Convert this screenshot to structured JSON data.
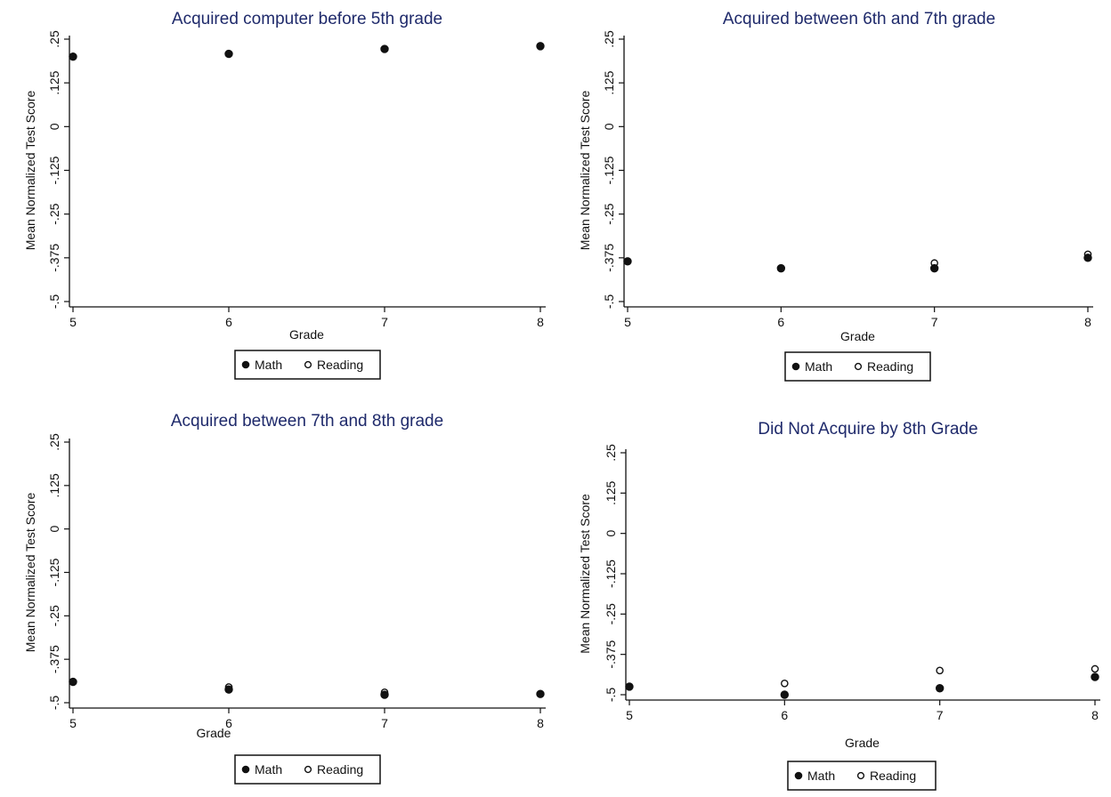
{
  "colors": {
    "title": "#1f2a6b",
    "ink": "#111111",
    "background": "#ffffff"
  },
  "chart_data": [
    {
      "type": "scatter",
      "title": "Acquired computer before 5th grade",
      "xlabel": "Grade",
      "ylabel": "Mean Normalized Test Score",
      "x": [
        5,
        6,
        7,
        8
      ],
      "xticks": [
        "5",
        "6",
        "7",
        "8"
      ],
      "yticks": [
        "-.5",
        "-.375",
        "-.25",
        "-.125",
        "0",
        ".125",
        ".25"
      ],
      "ytick_values": [
        -0.5,
        -0.375,
        -0.25,
        -0.125,
        0,
        0.125,
        0.25
      ],
      "xlim": [
        5,
        8
      ],
      "ylim": [
        -0.5,
        0.25
      ],
      "grid": false,
      "legend_position": "bottom",
      "series": [
        {
          "name": "Math",
          "marker": "filled-circle",
          "values": [
            0.2,
            0.208,
            0.222,
            0.23
          ]
        },
        {
          "name": "Reading",
          "marker": "hollow-circle",
          "values": [
            0.2,
            0.208,
            0.222,
            0.23
          ]
        }
      ]
    },
    {
      "type": "scatter",
      "title": "Acquired between 6th and 7th grade",
      "xlabel": "Grade",
      "ylabel": "Mean Normalized Test Score",
      "x": [
        5,
        6,
        7,
        8
      ],
      "xticks": [
        "5",
        "6",
        "7",
        "8"
      ],
      "yticks": [
        "-.5",
        "-.375",
        "-.25",
        "-.125",
        "0",
        ".125",
        ".25"
      ],
      "ytick_values": [
        -0.5,
        -0.375,
        -0.25,
        -0.125,
        0,
        0.125,
        0.25
      ],
      "xlim": [
        5,
        8
      ],
      "ylim": [
        -0.5,
        0.25
      ],
      "grid": false,
      "legend_position": "bottom",
      "series": [
        {
          "name": "Math",
          "marker": "filled-circle",
          "values": [
            -0.385,
            -0.405,
            -0.405,
            -0.375
          ]
        },
        {
          "name": "Reading",
          "marker": "hollow-circle",
          "values": [
            -0.385,
            -0.405,
            -0.39,
            -0.365
          ]
        }
      ]
    },
    {
      "type": "scatter",
      "title": "Acquired between 7th and 8th grade",
      "xlabel": "Grade",
      "ylabel": "Mean Normalized Test Score",
      "x": [
        5,
        6,
        7,
        8
      ],
      "xticks": [
        "5",
        "6",
        "7",
        "8"
      ],
      "yticks": [
        "-.5",
        "-.375",
        "-.25",
        "-.125",
        "0",
        ".125",
        ".25"
      ],
      "ytick_values": [
        -0.5,
        -0.375,
        -0.25,
        -0.125,
        0,
        0.125,
        0.25
      ],
      "xlim": [
        5,
        8
      ],
      "ylim": [
        -0.5,
        0.25
      ],
      "grid": false,
      "legend_position": "bottom",
      "series": [
        {
          "name": "Math",
          "marker": "filled-circle",
          "values": [
            -0.44,
            -0.462,
            -0.477,
            -0.475
          ]
        },
        {
          "name": "Reading",
          "marker": "hollow-circle",
          "values": [
            -0.44,
            -0.455,
            -0.47,
            -0.475
          ]
        }
      ]
    },
    {
      "type": "scatter",
      "title": "Did Not Acquire by 8th Grade",
      "xlabel": "Grade",
      "ylabel": "Mean Normalized Test Score",
      "x": [
        5,
        6,
        7,
        8
      ],
      "xticks": [
        "5",
        "6",
        "7",
        "8"
      ],
      "yticks": [
        "-.5",
        "-.375",
        "-.25",
        "-.125",
        "0",
        ".125",
        ".25"
      ],
      "ytick_values": [
        -0.5,
        -0.375,
        -0.25,
        -0.125,
        0,
        0.125,
        0.25
      ],
      "xlim": [
        5,
        8
      ],
      "ylim": [
        -0.5,
        0.25
      ],
      "grid": false,
      "legend_position": "bottom",
      "series": [
        {
          "name": "Math",
          "marker": "filled-circle",
          "values": [
            -0.475,
            -0.5,
            -0.48,
            -0.445
          ]
        },
        {
          "name": "Reading",
          "marker": "hollow-circle",
          "values": [
            -0.475,
            -0.465,
            -0.425,
            -0.42
          ]
        }
      ]
    }
  ]
}
